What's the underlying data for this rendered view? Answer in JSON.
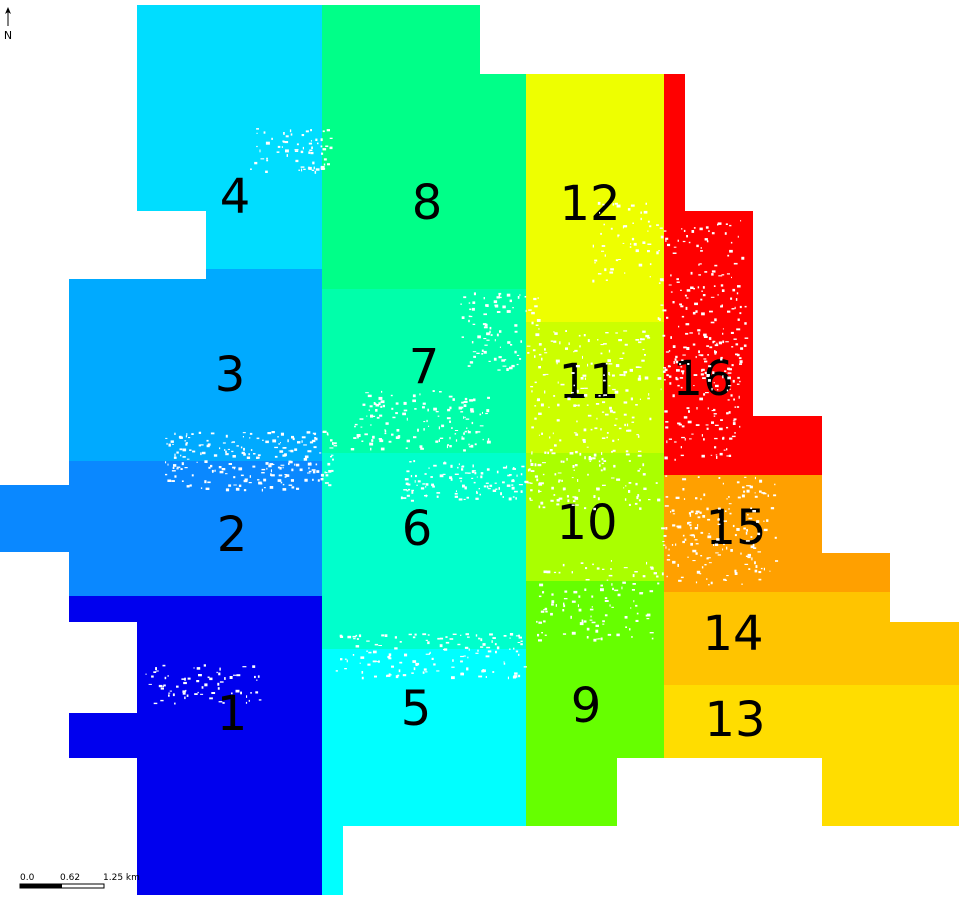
{
  "north_arrow": {
    "label": "N"
  },
  "scale_bar": {
    "labels": [
      "0.0",
      "0.62",
      "1.25 km"
    ]
  },
  "zones": [
    {
      "id": "1",
      "label": "1",
      "color": "#0000EE"
    },
    {
      "id": "2",
      "label": "2",
      "color": "#0A88FF"
    },
    {
      "id": "3",
      "label": "3",
      "color": "#00AAFF"
    },
    {
      "id": "4",
      "label": "4",
      "color": "#00DDFF"
    },
    {
      "id": "5",
      "label": "5",
      "color": "#00FFFF"
    },
    {
      "id": "6",
      "label": "6",
      "color": "#00FFCC"
    },
    {
      "id": "7",
      "label": "7",
      "color": "#00FFAA"
    },
    {
      "id": "8",
      "label": "8",
      "color": "#00FF88"
    },
    {
      "id": "9",
      "label": "9",
      "color": "#66FF00"
    },
    {
      "id": "10",
      "label": "10",
      "color": "#AAFF00"
    },
    {
      "id": "11",
      "label": "11",
      "color": "#CCFF00"
    },
    {
      "id": "12",
      "label": "12",
      "color": "#EEFF00"
    },
    {
      "id": "13",
      "label": "13",
      "color": "#FFDD00"
    },
    {
      "id": "14",
      "label": "14",
      "color": "#FFC400"
    },
    {
      "id": "15",
      "label": "15",
      "color": "#FFA000"
    },
    {
      "id": "16",
      "label": "16",
      "color": "#FF0000"
    }
  ]
}
